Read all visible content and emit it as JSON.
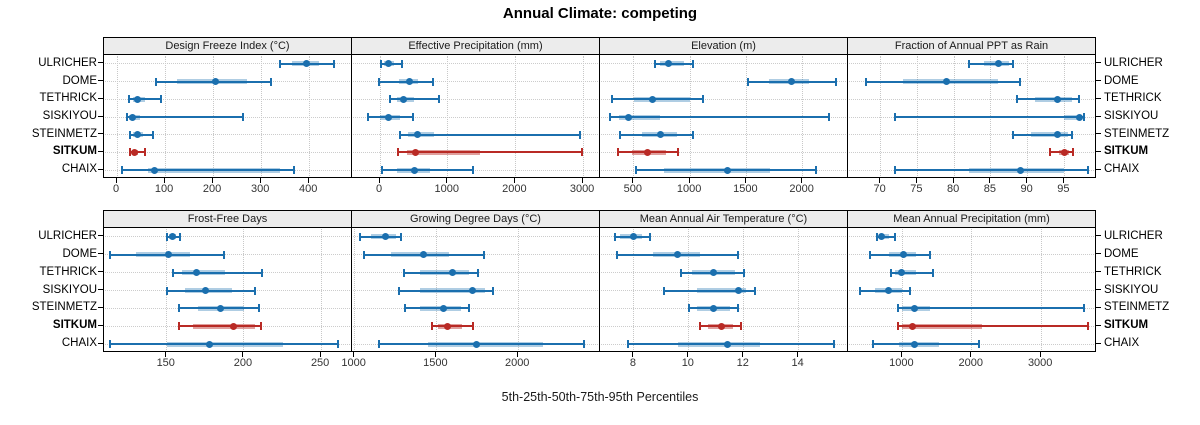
{
  "title": "Annual Climate: competing",
  "xlabel": "5th-25th-50th-75th-95th Percentiles",
  "colors": {
    "blue": "#1b6fae",
    "blue_band": "rgba(27,111,174,0.35)",
    "red": "#b92a25",
    "red_band": "rgba(185,42,37,0.45)",
    "strip_bg": "#ececec",
    "grid": "#c8c8c8",
    "border": "#000000",
    "tick_text": "#333333"
  },
  "sites": [
    {
      "name": "ULRICHER",
      "highlight": false
    },
    {
      "name": "DOME",
      "highlight": false
    },
    {
      "name": "TETHRICK",
      "highlight": false
    },
    {
      "name": "SISKIYOU",
      "highlight": false
    },
    {
      "name": "STEINMETZ",
      "highlight": false
    },
    {
      "name": "SITKUM",
      "highlight": true
    },
    {
      "name": "CHAIX",
      "highlight": false
    }
  ],
  "percentiles": [
    5,
    25,
    50,
    75,
    95
  ],
  "chart_data": [
    {
      "type": "dotplot-percentiles",
      "title": "Design Freeze Index (°C)",
      "grid_row": 0,
      "grid_col": 0,
      "xlim": [
        -25,
        489
      ],
      "ticks": [
        0,
        100,
        200,
        300,
        400
      ],
      "series": [
        {
          "site": "ULRICHER",
          "values": [
            340,
            365,
            395,
            420,
            452
          ]
        },
        {
          "site": "DOME",
          "values": [
            82,
            124,
            205,
            270,
            320
          ]
        },
        {
          "site": "TETHRICK",
          "values": [
            25,
            33,
            42,
            58,
            92
          ]
        },
        {
          "site": "SISKIYOU",
          "values": [
            20,
            25,
            32,
            48,
            262
          ]
        },
        {
          "site": "STEINMETZ",
          "values": [
            26,
            33,
            42,
            54,
            75
          ]
        },
        {
          "site": "SITKUM",
          "values": [
            28,
            31,
            36,
            44,
            58
          ]
        },
        {
          "site": "CHAIX",
          "values": [
            10,
            65,
            78,
            340,
            368
          ]
        }
      ]
    },
    {
      "type": "dotplot-percentiles",
      "title": "Effective Precipitation (mm)",
      "grid_row": 0,
      "grid_col": 1,
      "xlim": [
        -400,
        3250
      ],
      "ticks": [
        0,
        1000,
        2000,
        3000
      ],
      "series": [
        {
          "site": "ULRICHER",
          "values": [
            20,
            60,
            120,
            200,
            330
          ]
        },
        {
          "site": "DOME",
          "values": [
            -20,
            280,
            430,
            560,
            780
          ]
        },
        {
          "site": "TETHRICK",
          "values": [
            150,
            250,
            350,
            500,
            870
          ]
        },
        {
          "site": "SISKIYOU",
          "values": [
            -180,
            0,
            130,
            300,
            480
          ]
        },
        {
          "site": "STEINMETZ",
          "values": [
            290,
            420,
            560,
            790,
            2950
          ]
        },
        {
          "site": "SITKUM",
          "values": [
            260,
            400,
            520,
            1480,
            2980
          ]
        },
        {
          "site": "CHAIX",
          "values": [
            30,
            250,
            510,
            740,
            1380
          ]
        }
      ]
    },
    {
      "type": "dotplot-percentiles",
      "title": "Elevation (m)",
      "grid_row": 0,
      "grid_col": 2,
      "xlim": [
        208,
        2403
      ],
      "ticks": [
        500,
        1000,
        1500,
        2000
      ],
      "series": [
        {
          "site": "ULRICHER",
          "values": [
            690,
            730,
            810,
            950,
            1030
          ]
        },
        {
          "site": "DOME",
          "values": [
            1510,
            1700,
            1900,
            2060,
            2300
          ]
        },
        {
          "site": "TETHRICK",
          "values": [
            310,
            500,
            670,
            1000,
            1110
          ]
        },
        {
          "site": "SISKIYOU",
          "values": [
            290,
            370,
            450,
            730,
            2230
          ]
        },
        {
          "site": "STEINMETZ",
          "values": [
            380,
            570,
            740,
            880,
            1030
          ]
        },
        {
          "site": "SITKUM",
          "values": [
            360,
            480,
            620,
            790,
            890
          ]
        },
        {
          "site": "CHAIX",
          "values": [
            520,
            770,
            1330,
            1710,
            2120
          ]
        }
      ]
    },
    {
      "type": "dotplot-percentiles",
      "title": "Fraction of Annual PPT as Rain",
      "grid_row": 0,
      "grid_col": 3,
      "xlim": [
        65.7,
        99.3
      ],
      "ticks": [
        70,
        75,
        80,
        85,
        90,
        95
      ],
      "series": [
        {
          "site": "ULRICHER",
          "values": [
            82,
            84,
            86,
            87.5,
            88
          ]
        },
        {
          "site": "DOME",
          "values": [
            68,
            73,
            79,
            86,
            89
          ]
        },
        {
          "site": "TETHRICK",
          "values": [
            88.5,
            91,
            94,
            96,
            97
          ]
        },
        {
          "site": "SISKIYOU",
          "values": [
            72,
            95,
            97,
            97.4,
            97.6
          ]
        },
        {
          "site": "STEINMETZ",
          "values": [
            88,
            90.5,
            94,
            95.5,
            96
          ]
        },
        {
          "site": "SITKUM",
          "values": [
            93,
            94.3,
            95,
            95.6,
            96.2
          ]
        },
        {
          "site": "CHAIX",
          "values": [
            72,
            82,
            89,
            95,
            98.2
          ]
        }
      ]
    },
    {
      "type": "dotplot-percentiles",
      "title": "Frost-Free Days",
      "grid_row": 1,
      "grid_col": 0,
      "xlim": [
        110,
        270
      ],
      "ticks": [
        150,
        200,
        250
      ],
      "series": [
        {
          "site": "ULRICHER",
          "values": [
            150,
            151.5,
            153.5,
            156,
            158.5
          ]
        },
        {
          "site": "DOME",
          "values": [
            113,
            130,
            151,
            165,
            187
          ]
        },
        {
          "site": "TETHRICK",
          "values": [
            154,
            160,
            169,
            188,
            212
          ]
        },
        {
          "site": "SISKIYOU",
          "values": [
            150,
            162,
            175,
            192,
            207
          ]
        },
        {
          "site": "STEINMETZ",
          "values": [
            158,
            170,
            185,
            200,
            210
          ]
        },
        {
          "site": "SITKUM",
          "values": [
            158,
            167,
            193,
            207,
            211
          ]
        },
        {
          "site": "CHAIX",
          "values": [
            113,
            150,
            178,
            225,
            261
          ]
        }
      ]
    },
    {
      "type": "dotplot-percentiles",
      "title": "Growing Degree Days (°C)",
      "grid_row": 1,
      "grid_col": 1,
      "xlim": [
        990,
        2500
      ],
      "ticks": [
        1000,
        1500,
        2000
      ],
      "series": [
        {
          "site": "ULRICHER",
          "values": [
            1030,
            1100,
            1190,
            1250,
            1285
          ]
        },
        {
          "site": "DOME",
          "values": [
            1060,
            1220,
            1420,
            1580,
            1790
          ]
        },
        {
          "site": "TETHRICK",
          "values": [
            1300,
            1400,
            1600,
            1700,
            1755
          ]
        },
        {
          "site": "SISKIYOU",
          "values": [
            1270,
            1400,
            1720,
            1800,
            1845
          ]
        },
        {
          "site": "STEINMETZ",
          "values": [
            1310,
            1400,
            1545,
            1650,
            1700
          ]
        },
        {
          "site": "SITKUM",
          "values": [
            1470,
            1510,
            1565,
            1655,
            1725
          ]
        },
        {
          "site": "CHAIX",
          "values": [
            1150,
            1450,
            1745,
            2150,
            2400
          ]
        }
      ]
    },
    {
      "type": "dotplot-percentiles",
      "title": "Mean Annual Air Temperature (°C)",
      "grid_row": 1,
      "grid_col": 2,
      "xlim": [
        6.8,
        15.8
      ],
      "ticks": [
        8,
        10,
        12,
        14
      ],
      "series": [
        {
          "site": "ULRICHER",
          "values": [
            7.3,
            7.5,
            8.0,
            8.3,
            8.6
          ]
        },
        {
          "site": "DOME",
          "values": [
            7.4,
            8.7,
            9.6,
            10.4,
            11.8
          ]
        },
        {
          "site": "TETHRICK",
          "values": [
            9.7,
            10.1,
            10.9,
            11.7,
            12.0
          ]
        },
        {
          "site": "SISKIYOU",
          "values": [
            9.1,
            10.3,
            11.8,
            12.1,
            12.4
          ]
        },
        {
          "site": "STEINMETZ",
          "values": [
            10.0,
            10.3,
            10.9,
            11.5,
            11.8
          ]
        },
        {
          "site": "SITKUM",
          "values": [
            10.4,
            10.7,
            11.2,
            11.6,
            11.9
          ]
        },
        {
          "site": "CHAIX",
          "values": [
            7.8,
            9.6,
            11.4,
            12.6,
            15.3
          ]
        }
      ]
    },
    {
      "type": "dotplot-percentiles",
      "title": "Mean Annual Precipitation (mm)",
      "grid_row": 1,
      "grid_col": 3,
      "xlim": [
        230,
        3790
      ],
      "ticks": [
        1000,
        2000,
        3000
      ],
      "series": [
        {
          "site": "ULRICHER",
          "values": [
            640,
            660,
            700,
            800,
            900
          ]
        },
        {
          "site": "DOME",
          "values": [
            530,
            800,
            1010,
            1200,
            1400
          ]
        },
        {
          "site": "TETHRICK",
          "values": [
            830,
            900,
            990,
            1200,
            1440
          ]
        },
        {
          "site": "SISKIYOU",
          "values": [
            390,
            600,
            800,
            1000,
            1110
          ]
        },
        {
          "site": "STEINMETZ",
          "values": [
            930,
            1000,
            1180,
            1400,
            3620
          ]
        },
        {
          "site": "SITKUM",
          "values": [
            930,
            1000,
            1150,
            2150,
            3680
          ]
        },
        {
          "site": "CHAIX",
          "values": [
            580,
            950,
            1170,
            1530,
            2100
          ]
        }
      ]
    }
  ]
}
